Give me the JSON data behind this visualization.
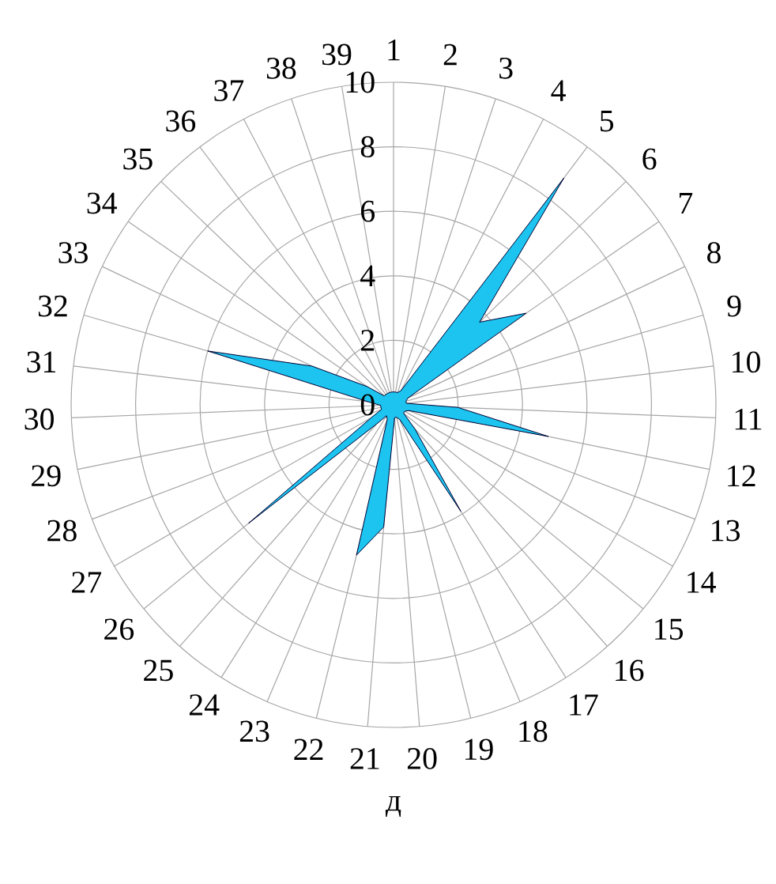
{
  "chart_data": {
    "type": "radar",
    "categories": [
      "1",
      "2",
      "3",
      "4",
      "5",
      "6",
      "7",
      "8",
      "9",
      "10",
      "11",
      "12",
      "13",
      "14",
      "15",
      "16",
      "17",
      "18",
      "19",
      "20",
      "21",
      "22",
      "23",
      "24",
      "25",
      "26",
      "27",
      "28",
      "29",
      "30",
      "31",
      "32",
      "33",
      "34",
      "35",
      "36",
      "37",
      "38",
      "39"
    ],
    "series": [
      {
        "color": "#1cc4ef",
        "values": [
          0.4,
          0.4,
          0.4,
          0.5,
          8.8,
          3.7,
          5.0,
          0.5,
          0.4,
          0.4,
          2.0,
          4.9,
          0.5,
          0.4,
          0.4,
          1.0,
          3.9,
          0.5,
          0.4,
          0.4,
          3.8,
          4.8,
          0.5,
          0.4,
          0.8,
          5.8,
          0.8,
          0.4,
          0.4,
          0.4,
          0.8,
          6.0,
          2.8,
          1.0,
          0.4,
          0.4,
          0.4,
          0.4,
          0.4
        ]
      }
    ],
    "ylim": [
      0,
      10
    ],
    "yticks": [
      0,
      2,
      4,
      6,
      8,
      10
    ],
    "grid": true,
    "annotations": [
      "д"
    ]
  }
}
